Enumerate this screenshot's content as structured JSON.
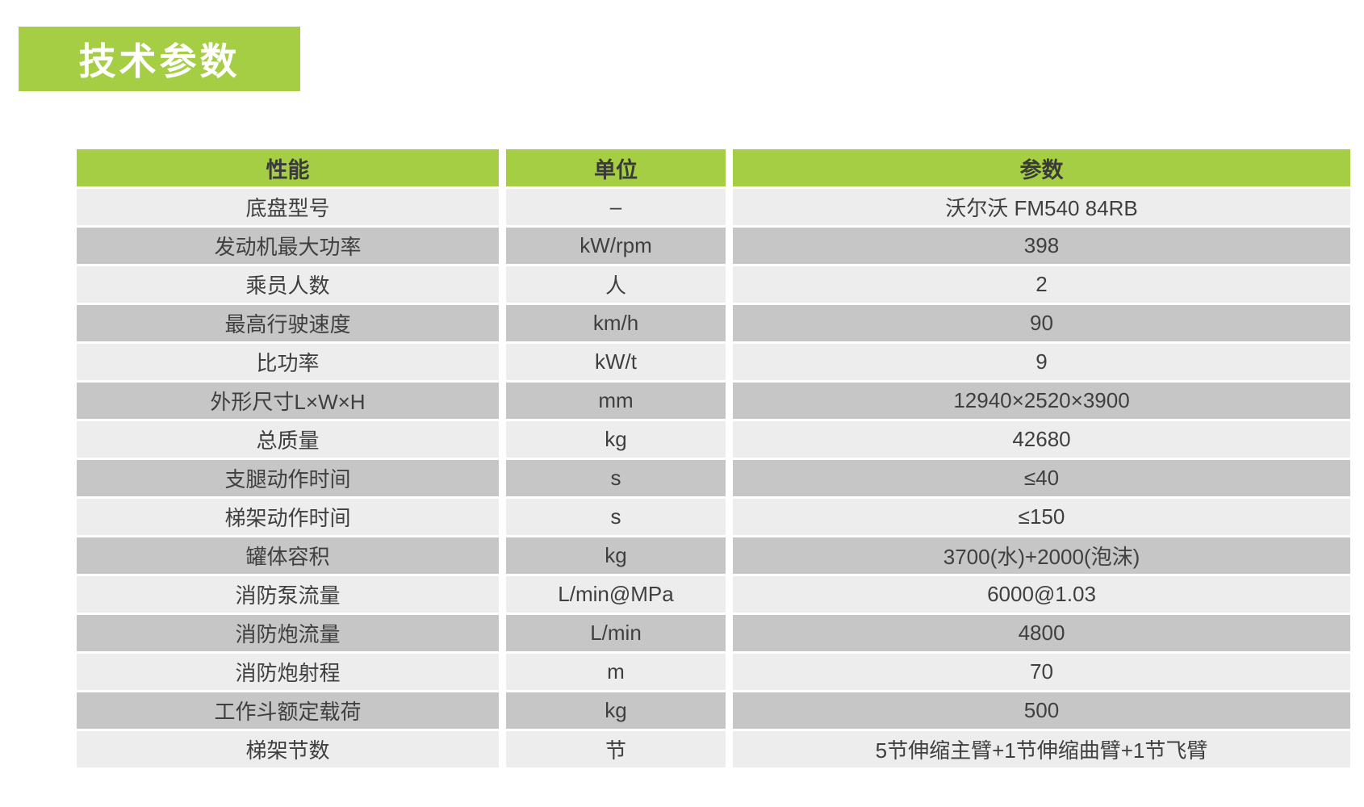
{
  "title": {
    "label": "技术参数"
  },
  "colors": {
    "accent_green": "#a6ce45",
    "row_light": "#ededed",
    "row_dark": "#c6c6c6",
    "text": "#3f3f3f",
    "banner_text": "#ffffff"
  },
  "table": {
    "headers": [
      "性能",
      "单位",
      "参数"
    ],
    "rows": [
      {
        "name": "底盘型号",
        "unit": "–",
        "value": "沃尔沃 FM540 84RB"
      },
      {
        "name": "发动机最大功率",
        "unit": "kW/rpm",
        "value": "398"
      },
      {
        "name": "乘员人数",
        "unit": "人",
        "value": "2"
      },
      {
        "name": "最高行驶速度",
        "unit": "km/h",
        "value": "90"
      },
      {
        "name": "比功率",
        "unit": "kW/t",
        "value": "9"
      },
      {
        "name": "外形尺寸L×W×H",
        "unit": "mm",
        "value": "12940×2520×3900"
      },
      {
        "name": "总质量",
        "unit": "kg",
        "value": "42680"
      },
      {
        "name": "支腿动作时间",
        "unit": "s",
        "value": "≤40"
      },
      {
        "name": "梯架动作时间",
        "unit": "s",
        "value": "≤150"
      },
      {
        "name": "罐体容积",
        "unit": "kg",
        "value": "3700(水)+2000(泡沫)"
      },
      {
        "name": "消防泵流量",
        "unit": "L/min@MPa",
        "value": "6000@1.03"
      },
      {
        "name": "消防炮流量",
        "unit": "L/min",
        "value": "4800"
      },
      {
        "name": "消防炮射程",
        "unit": "m",
        "value": "70"
      },
      {
        "name": "工作斗额定载荷",
        "unit": "kg",
        "value": "500"
      },
      {
        "name": "梯架节数",
        "unit": "节",
        "value": "5节伸缩主臂+1节伸缩曲臂+1节飞臂"
      }
    ]
  }
}
